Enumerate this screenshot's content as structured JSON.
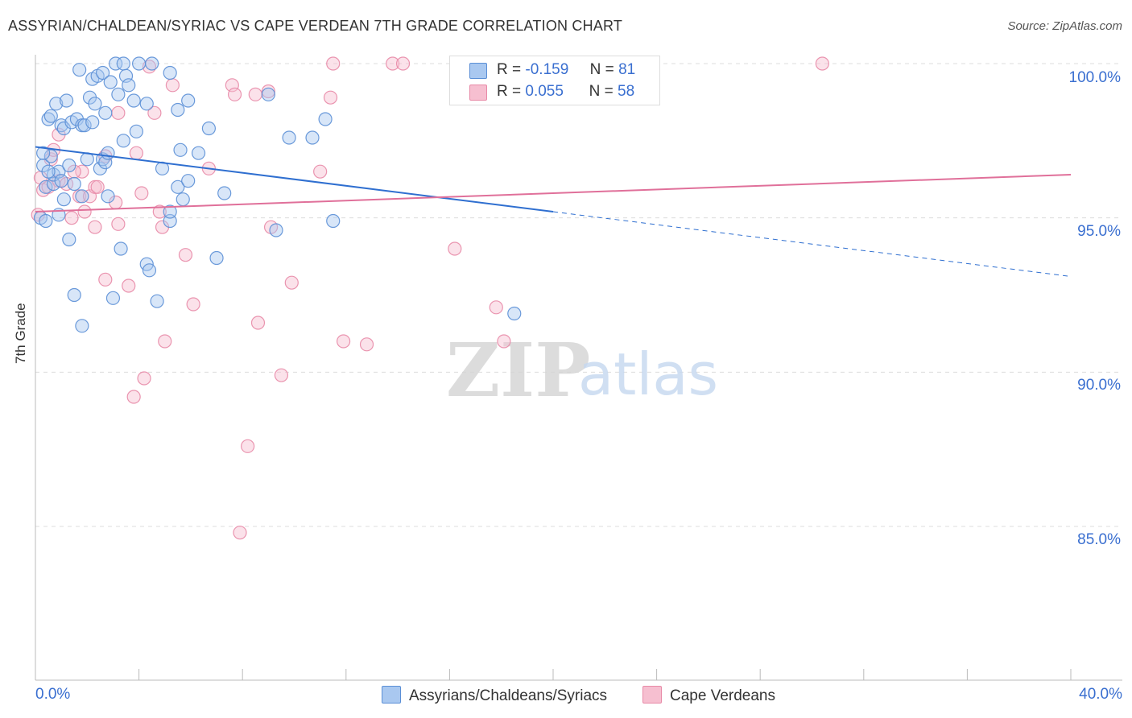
{
  "title": "ASSYRIAN/CHALDEAN/SYRIAC VS CAPE VERDEAN 7TH GRADE CORRELATION CHART",
  "source": "Source: ZipAtlas.com",
  "watermark": {
    "zip": "ZIP",
    "atlas": "atlas"
  },
  "legend": {
    "r_label": "R =",
    "n_label": "N =",
    "rows": [
      {
        "r": "-0.159",
        "n": "81"
      },
      {
        "r": "0.055",
        "n": "58"
      }
    ]
  },
  "bottom_legend": {
    "series1": "Assyrians/Chaldeans/Syriacs",
    "series2": "Cape Verdeans"
  },
  "colors": {
    "blue_fill": "#a9c8f0",
    "blue_stroke": "#5b8fd6",
    "blue_line": "#2f6fd0",
    "pink_fill": "#f6bfd0",
    "pink_stroke": "#e88aa7",
    "pink_line": "#e0709a",
    "tick_label": "#3a6fd0"
  },
  "chart_data": {
    "type": "scatter",
    "title": "ASSYRIAN/CHALDEAN/SYRIAC VS CAPE VERDEAN 7TH GRADE CORRELATION CHART",
    "xlabel": "",
    "ylabel": "7th Grade",
    "xlim": [
      0,
      40
    ],
    "ylim": [
      80.5,
      100.8
    ],
    "x_tick_labels": [
      "0.0%",
      "40.0%"
    ],
    "y_ticks": [
      85,
      90,
      95,
      100
    ],
    "y_tick_labels": [
      "85.0%",
      "90.0%",
      "95.0%",
      "100.0%"
    ],
    "grid": true,
    "series": [
      {
        "name": "Assyrians/Chaldeans/Syriacs",
        "r": -0.159,
        "n": 81,
        "trend": {
          "x0": 0,
          "y0": 97.3,
          "x1": 20,
          "y1": 95.2,
          "dash_to_x": 40,
          "dash_to_y": 93.1
        },
        "points": [
          [
            0.2,
            95.0
          ],
          [
            0.3,
            96.7
          ],
          [
            0.4,
            96.0
          ],
          [
            0.5,
            98.2
          ],
          [
            0.6,
            97.0
          ],
          [
            0.6,
            98.3
          ],
          [
            0.7,
            96.1
          ],
          [
            0.7,
            96.4
          ],
          [
            0.8,
            98.7
          ],
          [
            0.9,
            95.1
          ],
          [
            0.9,
            96.5
          ],
          [
            1.0,
            98.0
          ],
          [
            1.1,
            97.9
          ],
          [
            1.1,
            95.6
          ],
          [
            1.2,
            98.8
          ],
          [
            1.3,
            94.3
          ],
          [
            1.3,
            96.7
          ],
          [
            1.4,
            98.1
          ],
          [
            1.5,
            96.1
          ],
          [
            1.5,
            92.5
          ],
          [
            1.6,
            98.2
          ],
          [
            1.7,
            99.8
          ],
          [
            1.8,
            98.0
          ],
          [
            1.8,
            95.7
          ],
          [
            1.8,
            91.5
          ],
          [
            1.9,
            98.0
          ],
          [
            2.0,
            96.9
          ],
          [
            2.1,
            98.9
          ],
          [
            2.2,
            99.5
          ],
          [
            2.2,
            98.1
          ],
          [
            2.3,
            98.7
          ],
          [
            2.4,
            99.6
          ],
          [
            2.5,
            96.6
          ],
          [
            2.6,
            96.9
          ],
          [
            2.6,
            99.7
          ],
          [
            2.7,
            96.8
          ],
          [
            2.7,
            98.4
          ],
          [
            2.8,
            97.1
          ],
          [
            2.8,
            95.7
          ],
          [
            2.9,
            99.4
          ],
          [
            3.0,
            92.4
          ],
          [
            3.1,
            100.0
          ],
          [
            3.2,
            99.0
          ],
          [
            3.3,
            94.0
          ],
          [
            3.4,
            97.5
          ],
          [
            3.4,
            100.0
          ],
          [
            3.5,
            99.6
          ],
          [
            3.6,
            99.3
          ],
          [
            3.8,
            98.8
          ],
          [
            3.9,
            97.8
          ],
          [
            4.0,
            100.0
          ],
          [
            4.3,
            93.5
          ],
          [
            4.3,
            98.7
          ],
          [
            4.4,
            93.3
          ],
          [
            4.5,
            100.0
          ],
          [
            4.7,
            92.3
          ],
          [
            4.9,
            96.6
          ],
          [
            5.2,
            99.7
          ],
          [
            5.2,
            94.9
          ],
          [
            5.2,
            95.2
          ],
          [
            5.5,
            96.0
          ],
          [
            5.5,
            98.5
          ],
          [
            5.6,
            97.2
          ],
          [
            5.7,
            95.6
          ],
          [
            5.9,
            98.8
          ],
          [
            5.9,
            96.2
          ],
          [
            6.3,
            97.1
          ],
          [
            6.7,
            97.9
          ],
          [
            7.0,
            93.7
          ],
          [
            7.3,
            95.8
          ],
          [
            9.0,
            99.0
          ],
          [
            9.3,
            94.6
          ],
          [
            9.8,
            97.6
          ],
          [
            10.7,
            97.6
          ],
          [
            11.2,
            98.2
          ],
          [
            11.5,
            94.9
          ],
          [
            0.4,
            94.9
          ],
          [
            0.5,
            96.5
          ],
          [
            18.5,
            91.9
          ],
          [
            0.3,
            97.1
          ],
          [
            1.0,
            96.2
          ]
        ]
      },
      {
        "name": "Cape Verdeans",
        "r": 0.055,
        "n": 58,
        "trend": {
          "x0": 0,
          "y0": 95.2,
          "x1": 40,
          "y1": 96.4
        },
        "points": [
          [
            0.1,
            95.1
          ],
          [
            0.3,
            95.9
          ],
          [
            0.5,
            96.0
          ],
          [
            0.6,
            96.9
          ],
          [
            0.7,
            97.2
          ],
          [
            0.9,
            96.2
          ],
          [
            0.9,
            97.7
          ],
          [
            1.2,
            96.1
          ],
          [
            1.4,
            95.0
          ],
          [
            1.7,
            95.7
          ],
          [
            1.8,
            96.5
          ],
          [
            1.9,
            95.2
          ],
          [
            2.1,
            95.7
          ],
          [
            2.3,
            96.0
          ],
          [
            2.3,
            94.7
          ],
          [
            2.4,
            96.0
          ],
          [
            2.7,
            97.0
          ],
          [
            2.7,
            93.0
          ],
          [
            3.1,
            95.5
          ],
          [
            3.2,
            98.4
          ],
          [
            3.2,
            94.8
          ],
          [
            3.6,
            92.8
          ],
          [
            3.8,
            89.2
          ],
          [
            3.9,
            97.1
          ],
          [
            4.1,
            95.8
          ],
          [
            4.2,
            89.8
          ],
          [
            4.4,
            99.9
          ],
          [
            4.6,
            98.4
          ],
          [
            4.8,
            95.2
          ],
          [
            4.9,
            94.7
          ],
          [
            5.0,
            91.0
          ],
          [
            5.3,
            99.3
          ],
          [
            5.8,
            93.8
          ],
          [
            6.1,
            92.2
          ],
          [
            6.7,
            96.6
          ],
          [
            7.6,
            99.3
          ],
          [
            7.7,
            99.0
          ],
          [
            7.9,
            84.8
          ],
          [
            8.2,
            87.6
          ],
          [
            8.5,
            99.0
          ],
          [
            8.6,
            91.6
          ],
          [
            9.0,
            99.1
          ],
          [
            9.1,
            94.7
          ],
          [
            9.5,
            89.9
          ],
          [
            9.9,
            92.9
          ],
          [
            11.0,
            96.5
          ],
          [
            11.4,
            98.9
          ],
          [
            11.5,
            100.0
          ],
          [
            11.9,
            91.0
          ],
          [
            12.8,
            90.9
          ],
          [
            13.8,
            100.0
          ],
          [
            14.2,
            100.0
          ],
          [
            16.2,
            94.0
          ],
          [
            17.8,
            92.1
          ],
          [
            18.1,
            91.0
          ],
          [
            30.4,
            100.0
          ],
          [
            0.2,
            96.3
          ],
          [
            1.5,
            96.5
          ]
        ]
      }
    ]
  }
}
